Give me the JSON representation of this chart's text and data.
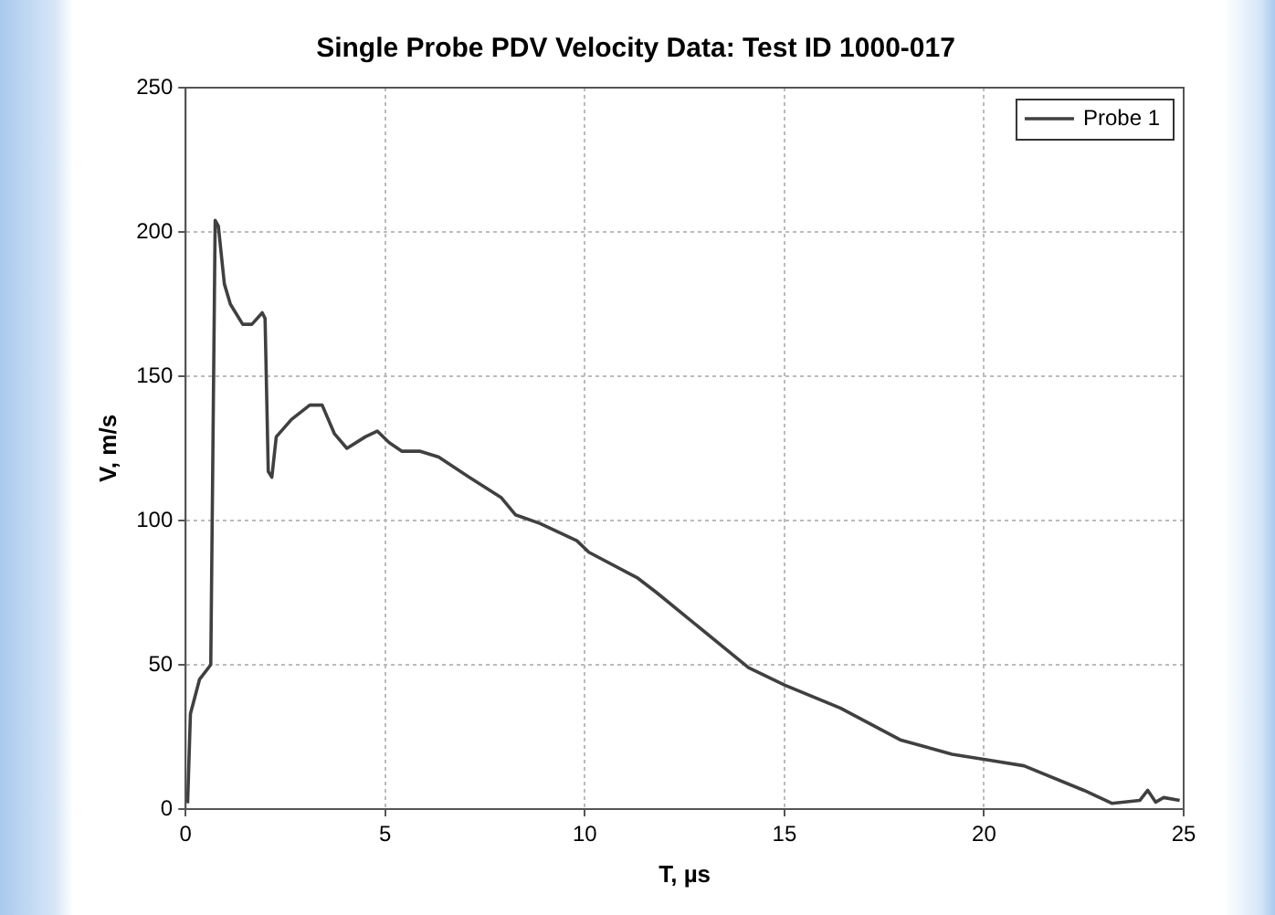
{
  "chart_data": {
    "type": "line",
    "title": "Single Probe PDV Velocity Data: Test ID 1000-017",
    "xlabel": "T, µs",
    "ylabel": "V, m/s",
    "xlim": [
      0,
      25
    ],
    "xticks": [
      0,
      5,
      10,
      15,
      20,
      25
    ],
    "ylim": [
      0,
      250
    ],
    "yticks": [
      0,
      50,
      100,
      150,
      200,
      250
    ],
    "grid": true,
    "legend": "top right",
    "marker": "none",
    "line_style": "solid",
    "series": [
      {
        "name": "Probe 1",
        "color": "#404040",
        "x": [
          0.05,
          0.12,
          0.35,
          0.63,
          0.74,
          0.82,
          0.97,
          1.12,
          1.43,
          1.66,
          1.92,
          1.99,
          2.07,
          2.16,
          2.27,
          2.65,
          3.11,
          3.42,
          3.73,
          4.04,
          4.5,
          4.8,
          5.1,
          5.42,
          5.88,
          6.34,
          7.1,
          7.9,
          8.26,
          8.87,
          9.8,
          10.1,
          11.33,
          11.8,
          14.1,
          15.0,
          16.4,
          17.9,
          19.2,
          20.1,
          21.0,
          22.5,
          23.2,
          23.9,
          24.1,
          24.3,
          24.5,
          24.9
        ],
        "values": [
          2,
          33,
          45,
          50,
          204,
          202,
          182,
          175,
          168,
          168,
          172,
          170,
          117,
          115,
          129,
          135,
          140,
          140,
          130,
          125,
          129,
          131,
          127,
          124,
          124,
          122,
          115,
          108,
          102,
          99,
          93,
          89,
          80,
          75,
          49,
          43,
          35,
          24,
          19,
          17,
          15,
          6.5,
          2,
          3,
          6.5,
          2.4,
          4,
          3
        ]
      }
    ]
  }
}
